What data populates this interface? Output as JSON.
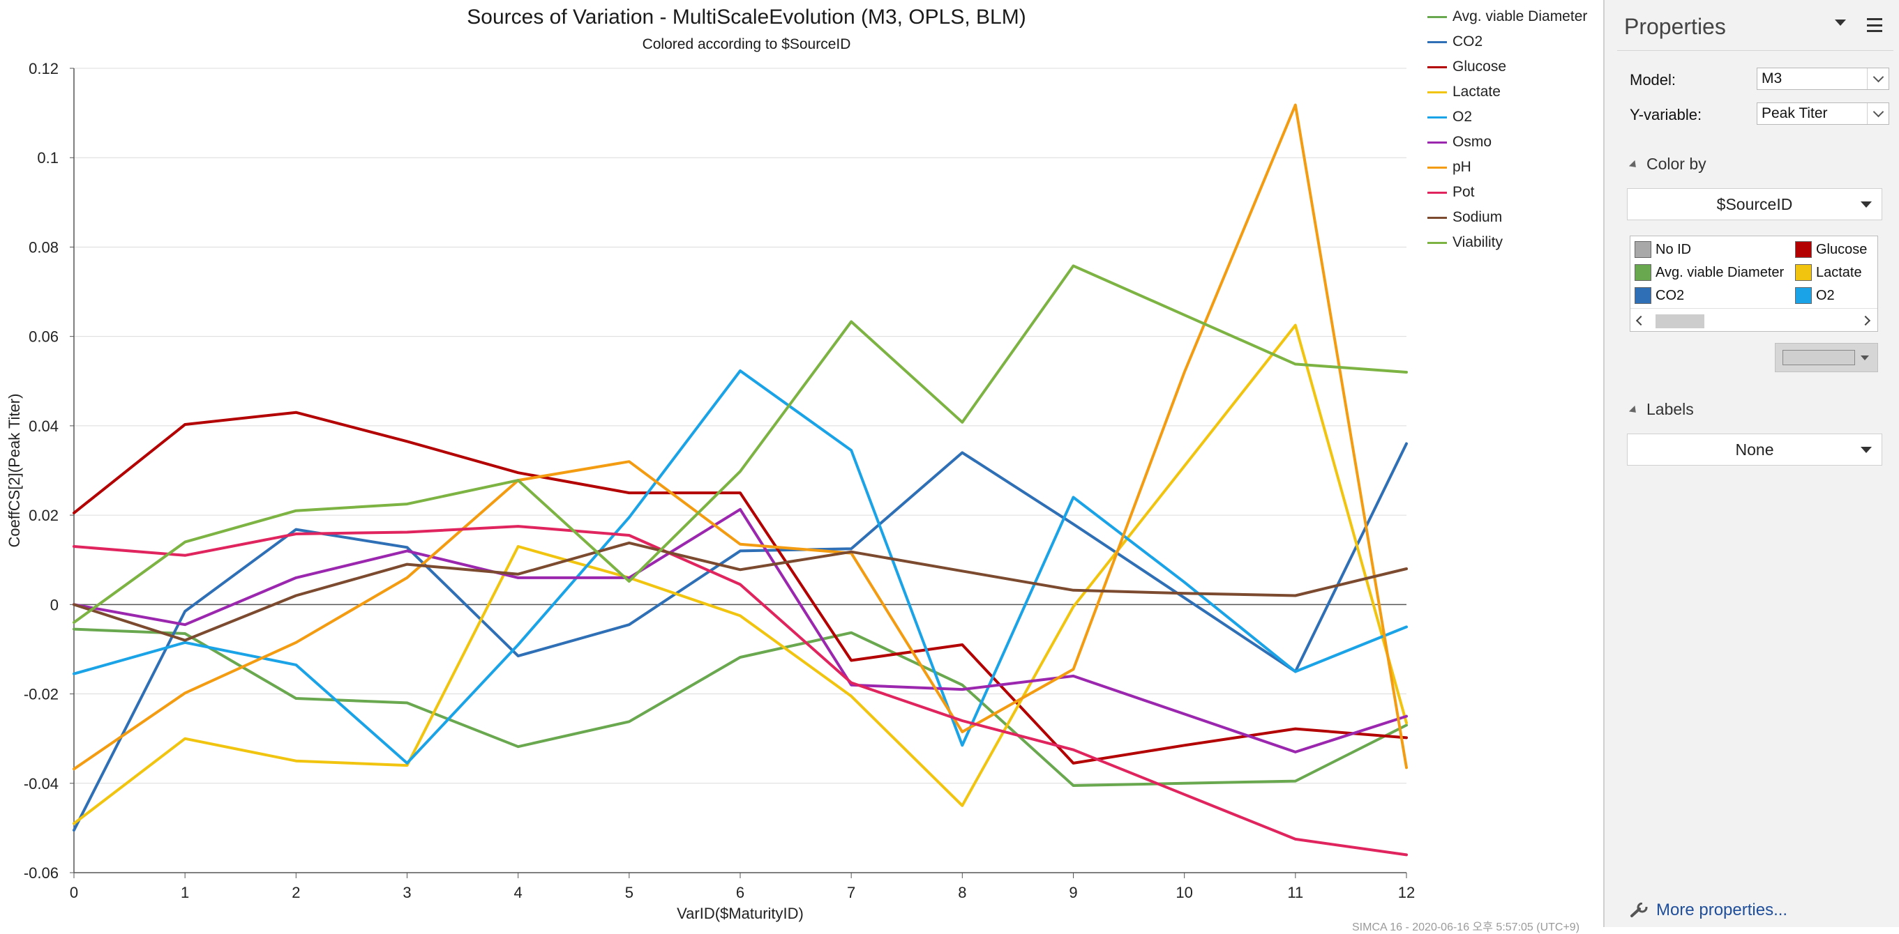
{
  "chart": {
    "title": "Sources of Variation - MultiScaleEvolution (M3, OPLS, BLM)",
    "subtitle": "Colored according to $SourceID",
    "footer_stamp": "SIMCA 16 - 2020-06-16 오후 5:57:05 (UTC+9)"
  },
  "panel": {
    "title": "Properties",
    "model_label": "Model:",
    "model_value": "M3",
    "yvar_label": "Y-variable:",
    "yvar_value": "Peak Titer",
    "color_by_label": "Color by",
    "color_by_value": "$SourceID",
    "color_table": [
      {
        "label": "No ID",
        "color": "#a8a8a8"
      },
      {
        "label": "Glucose",
        "color": "#b30000"
      },
      {
        "label": "Avg. viable Diameter",
        "color": "#6aa84f"
      },
      {
        "label": "Lactate",
        "color": "#f1c40f"
      },
      {
        "label": "CO2",
        "color": "#2e6fb5"
      },
      {
        "label": "O2",
        "color": "#1aa3e6"
      }
    ],
    "labels_label": "Labels",
    "labels_value": "None",
    "more_properties": "More properties..."
  },
  "chart_data": {
    "type": "line",
    "title": "Sources of Variation - MultiScaleEvolution (M3, OPLS, BLM)",
    "subtitle": "Colored according to $SourceID",
    "xlabel": "VarID($MaturityID)",
    "ylabel": "CoeffCS[2](Peak Titer)",
    "x": [
      0,
      1,
      2,
      3,
      4,
      5,
      6,
      7,
      8,
      9,
      10,
      11,
      12
    ],
    "xlim": [
      0,
      12
    ],
    "ylim": [
      -0.06,
      0.12
    ],
    "yticks": [
      "0.12",
      "0.1",
      "0.08",
      "0.06",
      "0.04",
      "0.02",
      "0",
      "-0.02",
      "-0.04",
      "-0.06"
    ],
    "ytick_values": [
      0.12,
      0.1,
      0.08,
      0.06,
      0.04,
      0.02,
      0,
      -0.02,
      -0.04,
      -0.06
    ],
    "xticks": [
      "0",
      "1",
      "2",
      "3",
      "4",
      "5",
      "6",
      "7",
      "8",
      "9",
      "10",
      "11",
      "12"
    ],
    "grid": true,
    "legend_position": "top-right",
    "series": [
      {
        "name": "Avg. viable Diameter",
        "color": "#6aa84f",
        "values": [
          -0.0055,
          -0.0065,
          -0.021,
          -0.022,
          -0.0318,
          -0.0262,
          -0.0118,
          -0.0063,
          -0.018,
          -0.0405,
          -0.04,
          -0.0395,
          -0.027
        ]
      },
      {
        "name": "CO2",
        "color": "#2e6fb5",
        "values": [
          -0.0505,
          -0.0015,
          0.0168,
          0.0128,
          -0.0115,
          -0.0045,
          0.012,
          0.0125,
          0.034,
          0.018,
          0.0015,
          -0.015,
          0.036
        ]
      },
      {
        "name": "Glucose",
        "color": "#b30000",
        "values": [
          0.0205,
          0.0403,
          0.043,
          0.0365,
          0.0295,
          0.025,
          0.025,
          -0.0125,
          -0.009,
          -0.0355,
          -0.0315,
          -0.0278,
          -0.0298
        ]
      },
      {
        "name": "Lactate",
        "color": "#f1c40f",
        "values": [
          -0.049,
          -0.03,
          -0.035,
          -0.036,
          0.013,
          0.006,
          -0.0025,
          -0.0205,
          -0.045,
          -0.0005,
          0.031,
          0.0625,
          -0.0265
        ]
      },
      {
        "name": "O2",
        "color": "#1aa3e6",
        "values": [
          -0.0155,
          -0.0085,
          -0.0135,
          -0.0355,
          -0.009,
          0.0195,
          0.0523,
          0.0345,
          -0.0315,
          0.024,
          0.005,
          -0.015,
          -0.005
        ]
      },
      {
        "name": "Osmo",
        "color": "#9b27af",
        "values": [
          0,
          -0.0045,
          0.006,
          0.012,
          0.006,
          0.006,
          0.0213,
          -0.018,
          -0.019,
          -0.016,
          -0.0245,
          -0.033,
          -0.025
        ]
      },
      {
        "name": "pH",
        "color": "#f39c12",
        "values": [
          -0.0368,
          -0.0198,
          -0.0085,
          0.006,
          0.0278,
          0.032,
          0.0135,
          0.0115,
          -0.0285,
          -0.0145,
          0.052,
          0.1118,
          -0.0365
        ]
      },
      {
        "name": "Pot",
        "color": "#e0245e",
        "values": [
          0.013,
          0.011,
          0.0158,
          0.0162,
          0.0175,
          0.0155,
          0.0045,
          -0.0175,
          -0.026,
          -0.0325,
          -0.0425,
          -0.0525,
          -0.056
        ]
      },
      {
        "name": "Sodium",
        "color": "#7b4a2f",
        "values": [
          0,
          -0.008,
          0.002,
          0.009,
          0.0068,
          0.0138,
          0.0078,
          0.0118,
          0.0075,
          0.0032,
          0.0025,
          0.002,
          0.008
        ]
      },
      {
        "name": "Viability",
        "color": "#7cb342",
        "values": [
          -0.004,
          0.014,
          0.021,
          0.0225,
          0.0278,
          0.0052,
          0.0298,
          0.0633,
          0.0408,
          0.0758,
          0.0648,
          0.0538,
          0.052
        ]
      }
    ]
  }
}
